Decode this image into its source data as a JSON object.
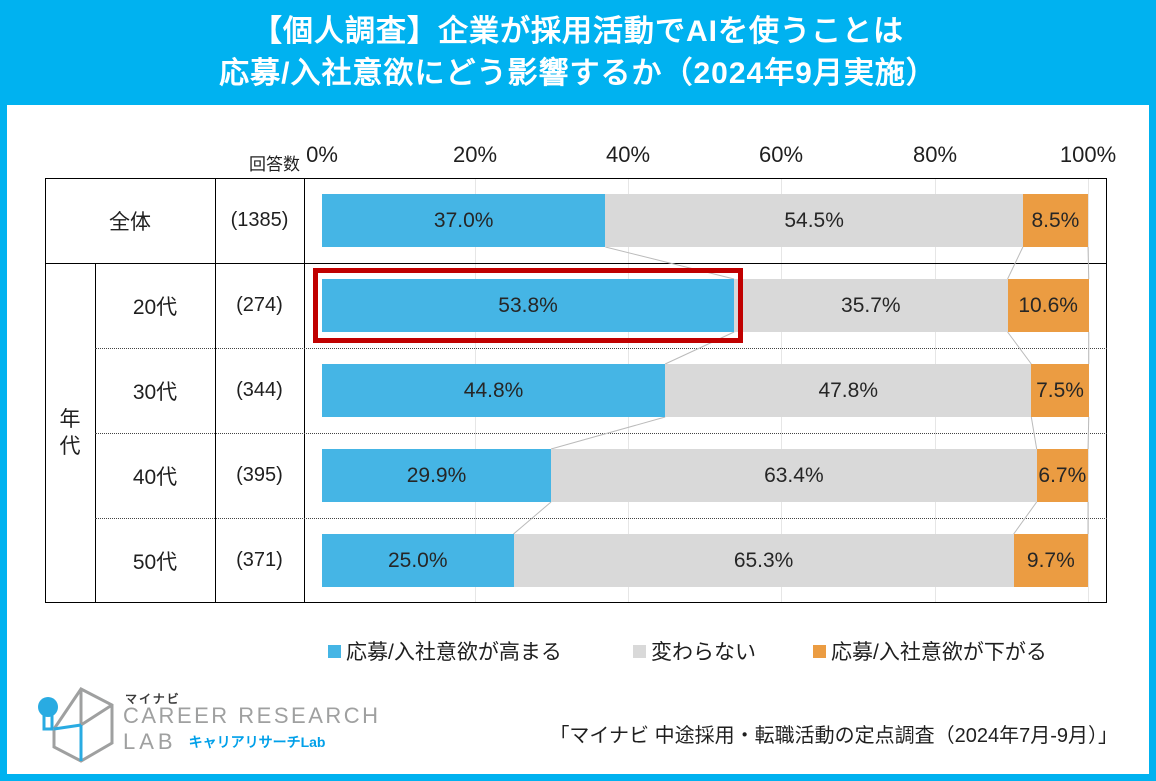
{
  "title": {
    "line1": "【個人調査】企業が採用活動でAIを使うことは",
    "line2": "応募/入社意欲にどう影響するか（2024年9月実施）"
  },
  "table": {
    "respondents_header": "回答数",
    "group_label": "年代"
  },
  "chart_data": {
    "type": "bar",
    "orientation": "horizontal_stacked",
    "unit": "%",
    "x_ticks": [
      "0%",
      "20%",
      "40%",
      "60%",
      "80%",
      "100%"
    ],
    "x_range": [
      0,
      100
    ],
    "grid": true,
    "legend_position": "bottom",
    "series": [
      {
        "name": "応募/入社意欲が高まる",
        "color": "#45B5E5"
      },
      {
        "name": "変わらない",
        "color": "#D9D9D9"
      },
      {
        "name": "応募/入社意欲が下がる",
        "color": "#EB9C42"
      }
    ],
    "rows": [
      {
        "label": "全体",
        "n": "(1385)",
        "values": [
          37.0,
          54.5,
          8.5
        ],
        "value_labels": [
          "37.0%",
          "54.5%",
          "8.5%"
        ],
        "highlight_first_segment": false
      },
      {
        "label": "20代",
        "n": "(274)",
        "values": [
          53.8,
          35.7,
          10.6
        ],
        "value_labels": [
          "53.8%",
          "35.7%",
          "10.6%"
        ],
        "highlight_first_segment": true
      },
      {
        "label": "30代",
        "n": "(344)",
        "values": [
          44.8,
          47.8,
          7.5
        ],
        "value_labels": [
          "44.8%",
          "47.8%",
          "7.5%"
        ],
        "highlight_first_segment": false
      },
      {
        "label": "40代",
        "n": "(395)",
        "values": [
          29.9,
          63.4,
          6.7
        ],
        "value_labels": [
          "29.9%",
          "63.4%",
          "6.7%"
        ],
        "highlight_first_segment": false
      },
      {
        "label": "50代",
        "n": "(371)",
        "values": [
          25.0,
          65.3,
          9.7
        ],
        "value_labels": [
          "25.0%",
          "65.3%",
          "9.7%"
        ],
        "highlight_first_segment": false
      }
    ],
    "highlight_color": "#C00000"
  },
  "footer": {
    "logo": {
      "brand_small": "マイナビ",
      "brand_line1": "CAREER RESEARCH",
      "brand_line2": "LAB",
      "brand_jp": "キャリアリサーチLab"
    },
    "source": "「マイナビ 中途採用・転職活動の定点調査（2024年7月-9月）」"
  },
  "colors": {
    "frame_cyan": "#00B2F0",
    "bar_blue": "#45B5E5",
    "bar_gray": "#D9D9D9",
    "bar_orange": "#EB9C42",
    "highlight_red": "#C00000"
  }
}
